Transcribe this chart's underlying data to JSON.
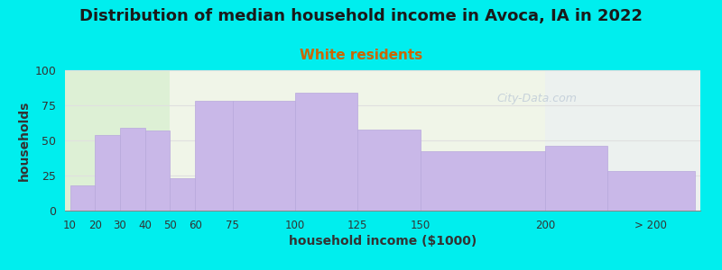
{
  "title": "Distribution of median household income in Avoca, IA in 2022",
  "subtitle": "White residents",
  "xlabel": "household income ($1000)",
  "ylabel": "households",
  "bar_edges": [
    10,
    20,
    30,
    40,
    50,
    60,
    75,
    100,
    125,
    150,
    200,
    225,
    260
  ],
  "bar_values": [
    18,
    54,
    59,
    57,
    23,
    78,
    78,
    84,
    58,
    42,
    46,
    28
  ],
  "bar_color": "#c9b8e8",
  "bar_edge_color": "#b8a8dc",
  "ylim": [
    0,
    100
  ],
  "yticks": [
    0,
    25,
    50,
    75,
    100
  ],
  "background_color": "#00eeee",
  "plot_bg_color": "#f0f5e8",
  "title_fontsize": 13,
  "subtitle_fontsize": 11,
  "subtitle_color": "#cc6600",
  "axis_label_fontsize": 10,
  "watermark_text": "City-Data.com",
  "watermark_color": "#c0ccd8",
  "xtick_labels": [
    "10",
    "20",
    "30",
    "40",
    "50",
    "60",
    "75",
    "100",
    "125",
    "150",
    "200",
    "> 200"
  ],
  "xtick_positions": [
    10,
    20,
    30,
    40,
    50,
    60,
    75,
    100,
    125,
    150,
    200,
    242
  ]
}
